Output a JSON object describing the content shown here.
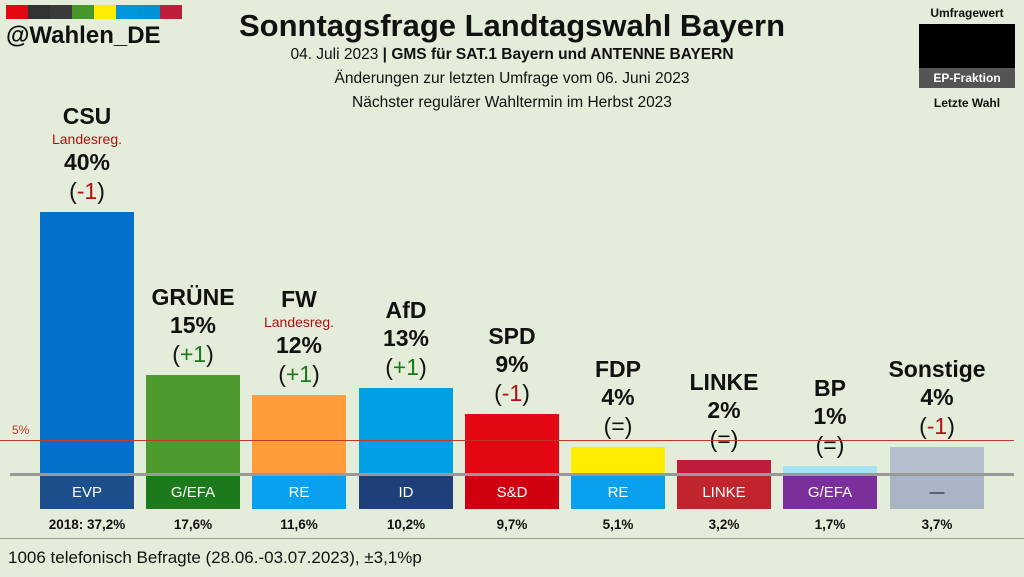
{
  "header": {
    "handle": "@Wahlen_DE",
    "title": "Sonntagsfrage Landtagswahl Bayern",
    "date": "04. Juli 2023",
    "separator": "|",
    "institute": "GMS für SAT.1 Bayern und ANTENNE BAYERN",
    "changes_note": "Änderungen zur letzten Umfrage vom 06. Juni 2023",
    "next_election": "Nächster regulärer Wahltermin im Herbst 2023",
    "stripe_colors": [
      "#e30613",
      "#333333",
      "#3a3a3a",
      "#46962b",
      "#ffed00",
      "#0096dc",
      "#0094d6",
      "#be1e3c"
    ]
  },
  "legend": {
    "top": "Umfragewert",
    "middle": "EP-Fraktion",
    "bottom": "Letzte Wahl"
  },
  "chart_data": {
    "type": "bar",
    "title": "Sonntagsfrage Landtagswahl Bayern",
    "categories": [
      "CSU",
      "GRÜNE",
      "FW",
      "AfD",
      "SPD",
      "FDP",
      "LINKE",
      "BP",
      "Sonstige"
    ],
    "values": [
      40,
      15,
      12,
      13,
      9,
      4,
      2,
      1,
      4
    ],
    "ylim": [
      0,
      42
    ],
    "threshold": {
      "value": 5,
      "label": "5%"
    },
    "bars": [
      {
        "party": "CSU",
        "value": 40,
        "pct": "40%",
        "change": "-1",
        "gov": "Landesreg.",
        "ep": "EVP",
        "prev": "2018: 37,2%",
        "color": "#0570c9",
        "ep_color": "#1d4f8c",
        "change_color": "#b01010"
      },
      {
        "party": "GRÜNE",
        "value": 15,
        "pct": "15%",
        "change": "+1",
        "gov": "",
        "ep": "G/EFA",
        "prev": "17,6%",
        "color": "#4f9a2f",
        "ep_color": "#1c7a1c",
        "change_color": "#1a7a1a"
      },
      {
        "party": "FW",
        "value": 12,
        "pct": "12%",
        "change": "+1",
        "gov": "Landesreg.",
        "ep": "RE",
        "prev": "11,6%",
        "color": "#ff9d3a",
        "ep_color": "#0aa0f0",
        "change_color": "#1a7a1a"
      },
      {
        "party": "AfD",
        "value": 13,
        "pct": "13%",
        "change": "+1",
        "gov": "",
        "ep": "ID",
        "prev": "10,2%",
        "color": "#00a1e4",
        "ep_color": "#1e3f7a",
        "change_color": "#1a7a1a"
      },
      {
        "party": "SPD",
        "value": 9,
        "pct": "9%",
        "change": "-1",
        "gov": "",
        "ep": "S&D",
        "prev": "9,7%",
        "color": "#e30613",
        "ep_color": "#d00010",
        "change_color": "#b01010"
      },
      {
        "party": "FDP",
        "value": 4,
        "pct": "4%",
        "change": "=",
        "gov": "",
        "ep": "RE",
        "prev": "5,1%",
        "color": "#ffed00",
        "ep_color": "#0aa0f0",
        "change_color": "#111111"
      },
      {
        "party": "LINKE",
        "value": 2,
        "pct": "2%",
        "change": "=",
        "gov": "",
        "ep": "LINKE",
        "prev": "3,2%",
        "color": "#be1e3c",
        "ep_color": "#c0242c",
        "change_color": "#111111"
      },
      {
        "party": "BP",
        "value": 1,
        "pct": "1%",
        "change": "=",
        "gov": "",
        "ep": "G/EFA",
        "prev": "1,7%",
        "color": "#a6e3f5",
        "ep_color": "#7a2f9a",
        "change_color": "#111111"
      },
      {
        "party": "Sonstige",
        "value": 4,
        "pct": "4%",
        "change": "-1",
        "gov": "",
        "ep": "—",
        "prev": "3,7%",
        "color": "#b3bfcc",
        "ep_color": "#a9b4c6",
        "change_color": "#b01010"
      }
    ]
  },
  "footer": {
    "note": "1006 telefonisch Befragte (28.06.-03.07.2023), ±3,1%p"
  }
}
